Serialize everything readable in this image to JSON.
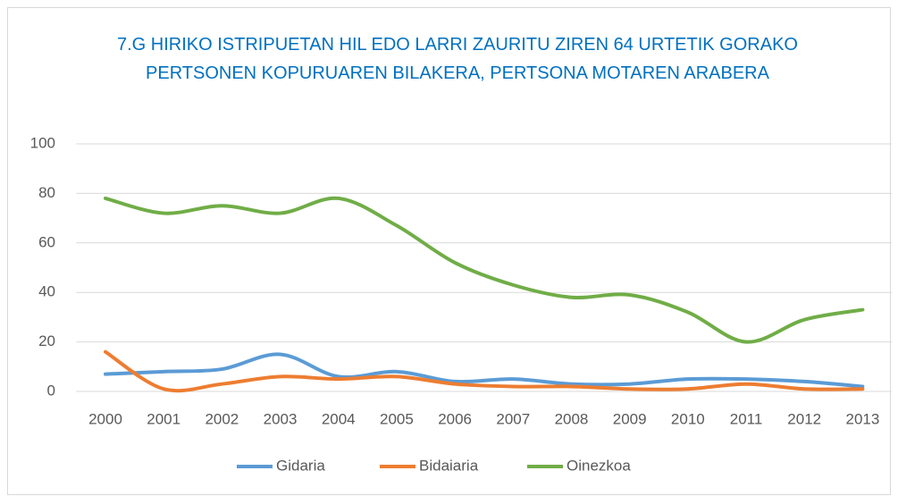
{
  "chart_data": {
    "type": "line",
    "title": "7.G  HIRIKO ISTRIPUETAN HIL EDO LARRI ZAURITU ZIREN 64 URTETIK GORAKO PERTSONEN KOPURUAREN BILAKERA, PERTSONA MOTAREN ARABERA",
    "categories": [
      "2000",
      "2001",
      "2002",
      "2003",
      "2004",
      "2005",
      "2006",
      "2007",
      "2008",
      "2009",
      "2010",
      "2011",
      "2012",
      "2013"
    ],
    "series": [
      {
        "name": "Gidaria",
        "color": "#5b9bd5",
        "values": [
          7,
          8,
          9,
          15,
          6,
          8,
          4,
          5,
          3,
          3,
          5,
          5,
          4,
          2
        ]
      },
      {
        "name": "Bidaiaria",
        "color": "#ed7d31",
        "values": [
          16,
          1,
          3,
          6,
          5,
          6,
          3,
          2,
          2,
          1,
          1,
          3,
          1,
          1
        ]
      },
      {
        "name": "Oinezkoa",
        "color": "#70ad47",
        "values": [
          78,
          72,
          75,
          72,
          78,
          67,
          52,
          43,
          38,
          39,
          32,
          20,
          29,
          33
        ]
      }
    ],
    "ylim": [
      0,
      100
    ],
    "yticks": [
      0,
      20,
      40,
      60,
      80,
      100
    ],
    "grid": true,
    "smooth": true,
    "legend": "bottom"
  }
}
